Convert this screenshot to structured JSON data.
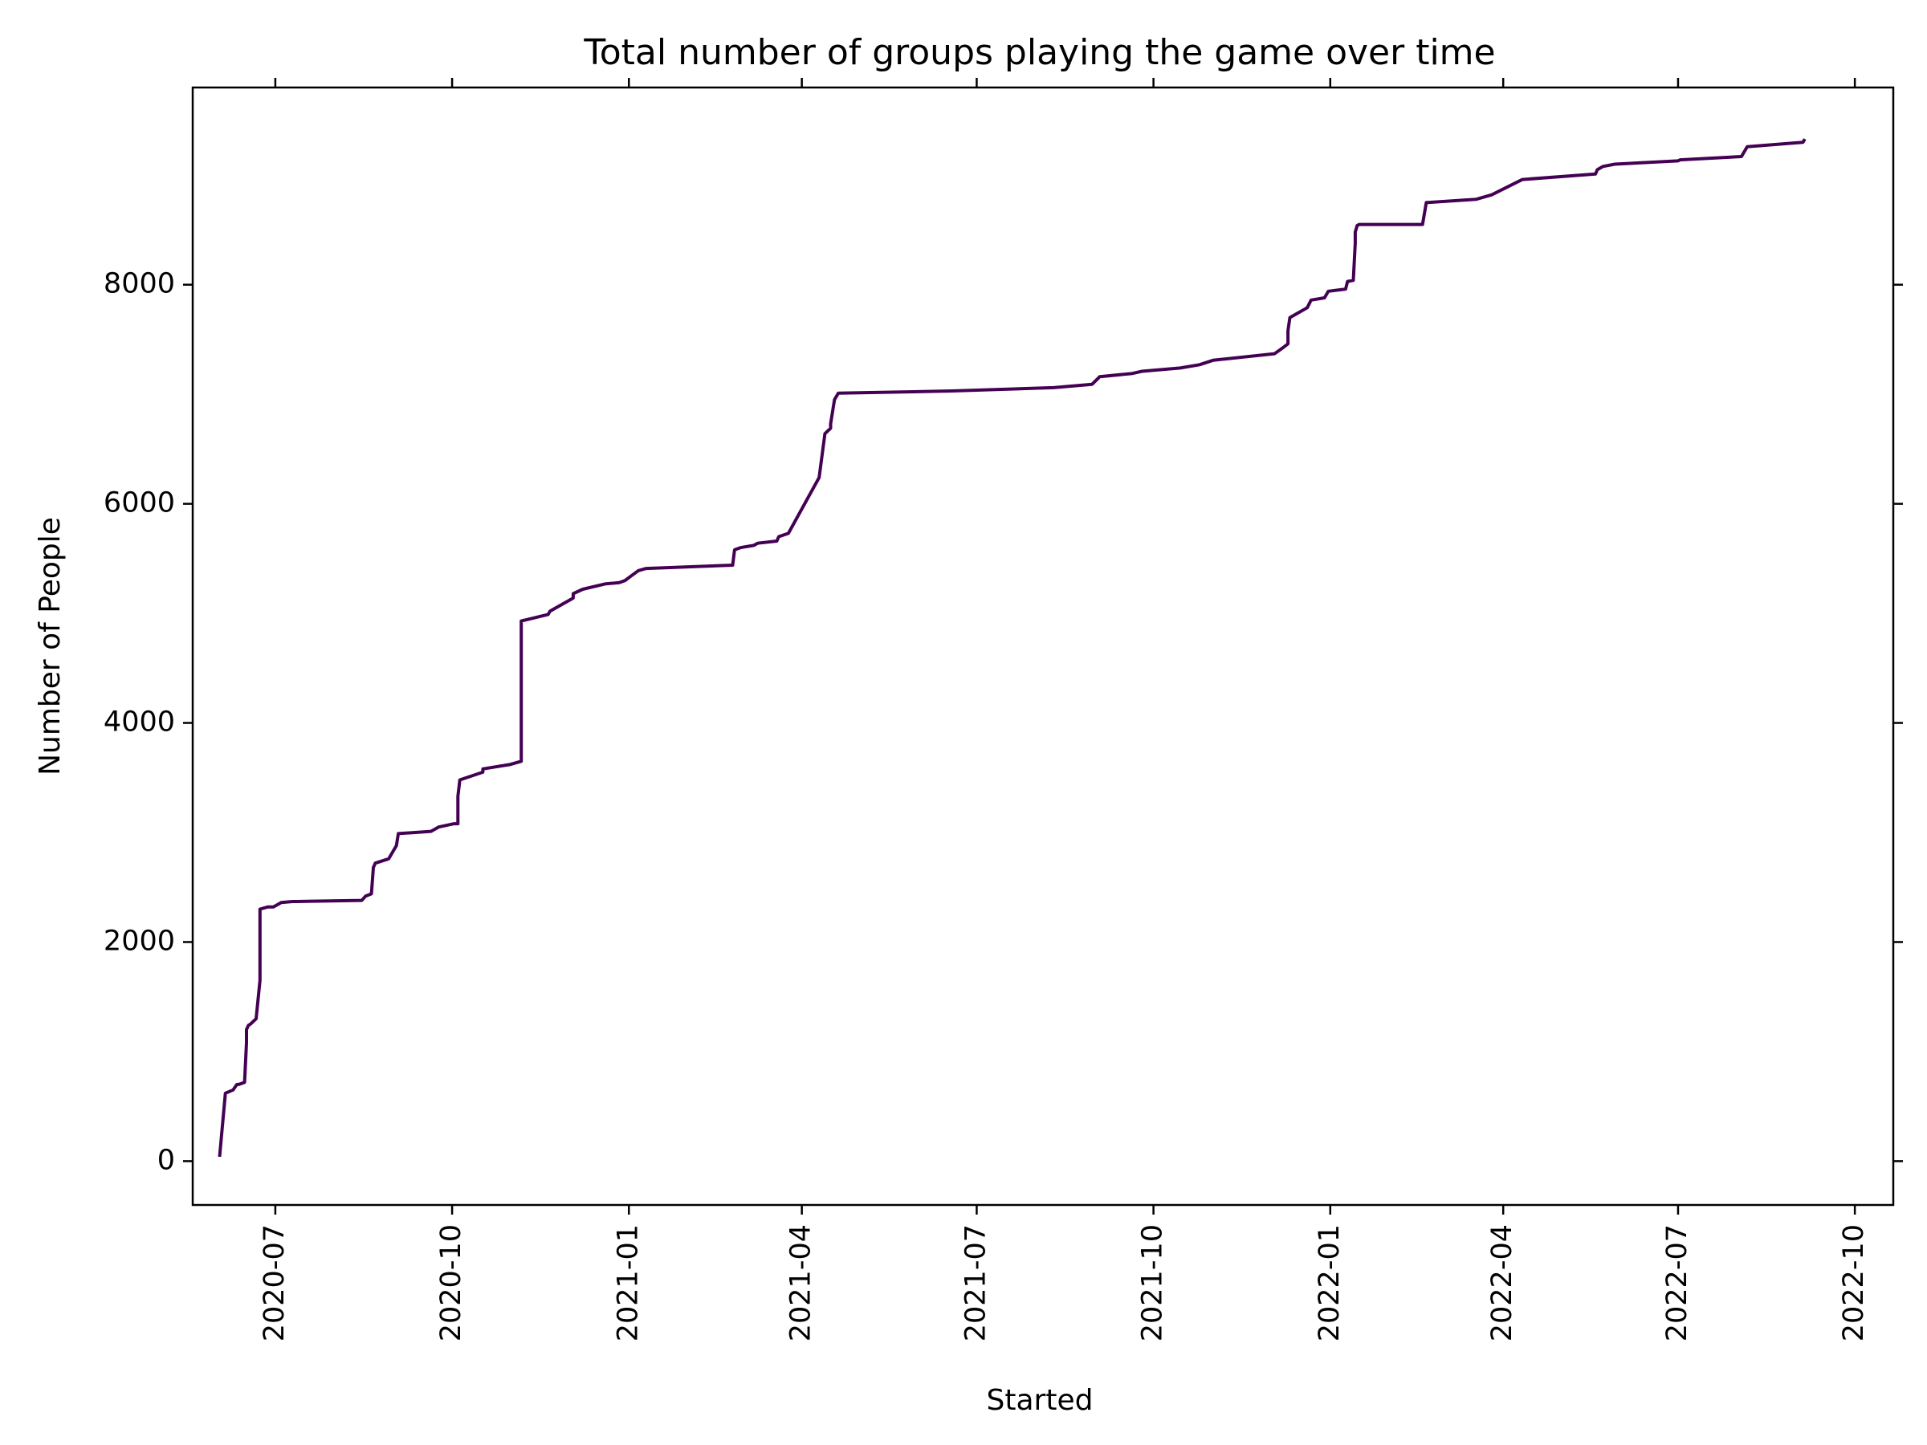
{
  "chart_data": {
    "type": "line",
    "title": "Total number of groups playing the game over time",
    "xlabel": "Started",
    "ylabel": "Number of People",
    "x_axis_type": "date",
    "xlim": [
      "2020-05-19",
      "2022-10-21"
    ],
    "ylim": [
      -400,
      9800
    ],
    "x_ticks": [
      "2020-07",
      "2020-10",
      "2021-01",
      "2021-04",
      "2021-07",
      "2021-10",
      "2022-01",
      "2022-04",
      "2022-07",
      "2022-10"
    ],
    "y_ticks": [
      0,
      2000,
      4000,
      6000,
      8000
    ],
    "ticks_on_all_sides": true,
    "grid": false,
    "line_color": "#440154",
    "series": [
      {
        "x": [
          "2020-06-02",
          "2020-06-05",
          "2020-06-09",
          "2020-06-11",
          "2020-06-12",
          "2020-06-15",
          "2020-06-16",
          "2020-06-16",
          "2020-06-17",
          "2020-06-18",
          "2020-06-21",
          "2020-06-23",
          "2020-06-23",
          "2020-06-27",
          "2020-06-30",
          "2020-07-03",
          "2020-07-04",
          "2020-07-10",
          "2020-07-12",
          "2020-08-15",
          "2020-08-17",
          "2020-08-20",
          "2020-08-21",
          "2020-08-22",
          "2020-08-29",
          "2020-09-02",
          "2020-09-03",
          "2020-09-20",
          "2020-09-24",
          "2020-10-02",
          "2020-10-04",
          "2020-10-04",
          "2020-10-05",
          "2020-10-17",
          "2020-10-17",
          "2020-10-31",
          "2020-11-06",
          "2020-11-06",
          "2020-11-06",
          "2020-11-20",
          "2020-11-21",
          "2020-12-03",
          "2020-12-03",
          "2020-12-08",
          "2020-12-20",
          "2020-12-27",
          "2020-12-30",
          "2021-01-02",
          "2021-01-06",
          "2021-01-10",
          "2021-02-24",
          "2021-02-25",
          "2021-02-28",
          "2021-03-07",
          "2021-03-09",
          "2021-03-19",
          "2021-03-20",
          "2021-03-25",
          "2021-04-10",
          "2021-04-13",
          "2021-04-16",
          "2021-04-16",
          "2021-04-18",
          "2021-04-20",
          "2021-06-18",
          "2021-08-10",
          "2021-08-30",
          "2021-09-03",
          "2021-09-20",
          "2021-09-25",
          "2021-10-15",
          "2021-10-25",
          "2021-11-01",
          "2021-12-03",
          "2021-12-07",
          "2021-12-10",
          "2021-12-10",
          "2021-12-11",
          "2021-12-13",
          "2021-12-20",
          "2021-12-22",
          "2021-12-29",
          "2021-12-31",
          "2022-01-09",
          "2022-01-10",
          "2022-01-13",
          "2022-01-14",
          "2022-01-14",
          "2022-01-15",
          "2022-01-16",
          "2022-02-18",
          "2022-02-20",
          "2022-03-18",
          "2022-03-26",
          "2022-04-11",
          "2022-05-19",
          "2022-05-20",
          "2022-05-23",
          "2022-05-29",
          "2022-07-01",
          "2022-07-02",
          "2022-08-03",
          "2022-08-06",
          "2022-09-04",
          "2022-09-05"
        ],
        "y": [
          40,
          620,
          650,
          700,
          700,
          720,
          1080,
          1200,
          1240,
          1250,
          1300,
          1650,
          2300,
          2320,
          2320,
          2350,
          2360,
          2370,
          2370,
          2380,
          2420,
          2440,
          2680,
          2720,
          2760,
          2880,
          2990,
          3010,
          3050,
          3080,
          3080,
          3330,
          3480,
          3550,
          3580,
          3620,
          3650,
          4700,
          4930,
          4990,
          5020,
          5140,
          5180,
          5220,
          5270,
          5280,
          5300,
          5340,
          5390,
          5410,
          5440,
          5580,
          5600,
          5620,
          5640,
          5660,
          5700,
          5730,
          6240,
          6640,
          6690,
          6730,
          6950,
          7010,
          7030,
          7060,
          7090,
          7160,
          7190,
          7210,
          7240,
          7270,
          7310,
          7370,
          7420,
          7460,
          7580,
          7700,
          7720,
          7790,
          7860,
          7880,
          7940,
          7960,
          8030,
          8040,
          8380,
          8480,
          8540,
          8550,
          8550,
          8750,
          8780,
          8820,
          8960,
          9010,
          9050,
          9080,
          9100,
          9130,
          9140,
          9170,
          9260,
          9300,
          9330
        ]
      }
    ]
  }
}
